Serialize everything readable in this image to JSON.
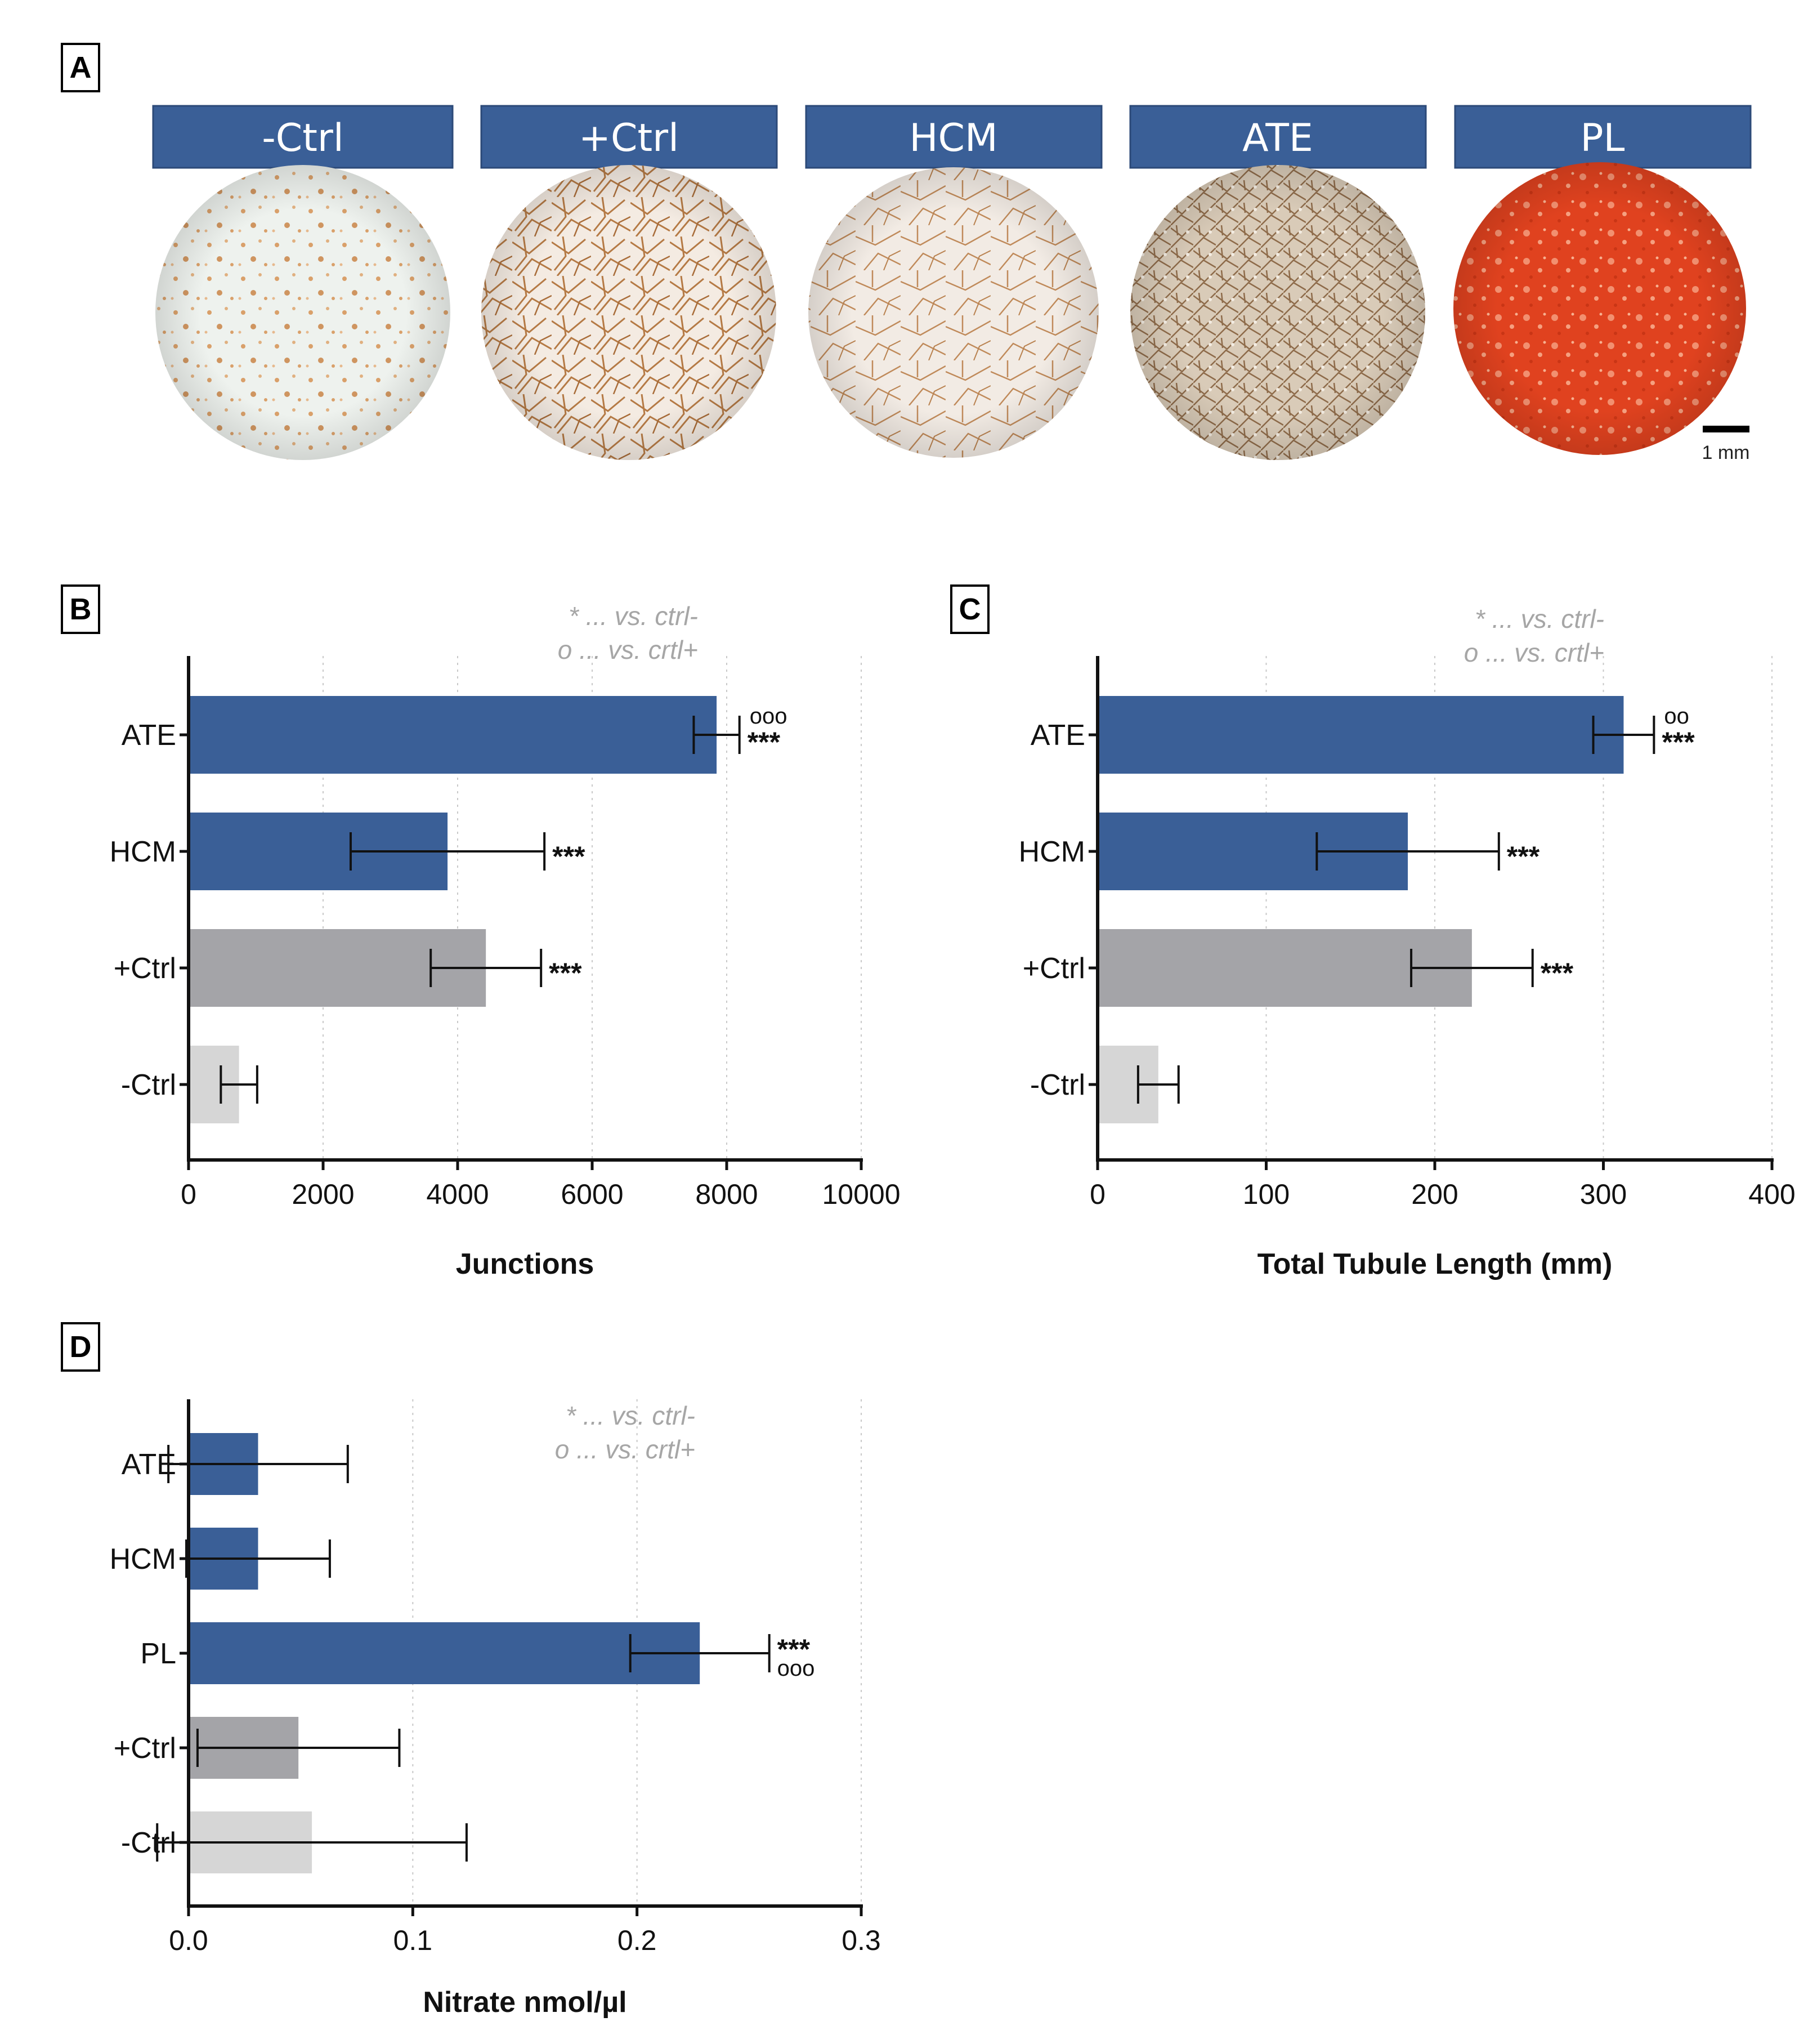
{
  "panel_a": {
    "letter": "A",
    "conditions": [
      {
        "label": "-Ctrl",
        "image": "sparse-orange-dots-well",
        "well_color": "#eef2ee",
        "accent": "#d9a06a"
      },
      {
        "label": "+Ctrl",
        "image": "dense-tubule-network-well",
        "well_color": "#f4ebe2",
        "accent": "#b57a45"
      },
      {
        "label": "HCM",
        "image": "tubule-network-well",
        "well_color": "#f2ebe4",
        "accent": "#c08a5a"
      },
      {
        "label": "ATE",
        "image": "dense-brown-texture-well",
        "well_color": "#d9cbb8",
        "accent": "#8e6b4a"
      },
      {
        "label": "PL",
        "image": "red-orange-well",
        "well_color": "#e0421f",
        "accent": "#f29070"
      }
    ],
    "header_color": "#3a5f97",
    "scale_bar_label": "1 mm"
  },
  "chart_data": [
    {
      "panel": "B",
      "type": "bar",
      "orientation": "horizontal",
      "categories": [
        "ATE",
        "HCM",
        "+Ctrl",
        "-Ctrl"
      ],
      "values": [
        7850,
        3850,
        4420,
        750
      ],
      "errors": [
        340,
        1440,
        820,
        270
      ],
      "colors": [
        "#3a5f97",
        "#3a5f97",
        "#a4a4a8",
        "#d6d6d6"
      ],
      "significance": [
        {
          "category": "ATE",
          "stars": "***",
          "circles": "ooo"
        },
        {
          "category": "HCM",
          "stars": "***",
          "circles": ""
        },
        {
          "category": "+Ctrl",
          "stars": "***",
          "circles": ""
        },
        {
          "category": "-Ctrl",
          "stars": "",
          "circles": ""
        }
      ],
      "xlabel": "Junctions",
      "xlim": [
        0,
        10000
      ],
      "xticks": [
        0,
        2000,
        4000,
        6000,
        8000,
        10000
      ],
      "xtick_labels": [
        "0",
        "2000",
        "4000",
        "6000",
        "8000",
        "10000"
      ],
      "legend": [
        "* ... vs. ctrl-",
        "o ... vs. crtl+"
      ],
      "grid": "vertical dotted"
    },
    {
      "panel": "C",
      "type": "bar",
      "orientation": "horizontal",
      "categories": [
        "ATE",
        "HCM",
        "+Ctrl",
        "-Ctrl"
      ],
      "values": [
        312,
        184,
        222,
        36
      ],
      "errors": [
        18,
        54,
        36,
        12
      ],
      "colors": [
        "#3a5f97",
        "#3a5f97",
        "#a4a4a8",
        "#d6d6d6"
      ],
      "significance": [
        {
          "category": "ATE",
          "stars": "***",
          "circles": "oo"
        },
        {
          "category": "HCM",
          "stars": "***",
          "circles": ""
        },
        {
          "category": "+Ctrl",
          "stars": "***",
          "circles": ""
        },
        {
          "category": "-Ctrl",
          "stars": "",
          "circles": ""
        }
      ],
      "xlabel": "Total Tubule Length  (mm)",
      "xlim": [
        0,
        400
      ],
      "xticks": [
        0,
        100,
        200,
        300,
        400
      ],
      "xtick_labels": [
        "0",
        "100",
        "200",
        "300",
        "400"
      ],
      "legend": [
        "* ... vs. ctrl-",
        "o ... vs. crtl+"
      ],
      "grid": "vertical dotted"
    },
    {
      "panel": "D",
      "type": "bar",
      "orientation": "horizontal",
      "categories": [
        "ATE",
        "HCM",
        "PL",
        "+Ctrl",
        "-Ctrl"
      ],
      "values": [
        0.031,
        0.031,
        0.228,
        0.049,
        0.055
      ],
      "errors": [
        0.04,
        0.032,
        0.031,
        0.045,
        0.069
      ],
      "colors": [
        "#3a5f97",
        "#3a5f97",
        "#3a5f97",
        "#a4a4a8",
        "#d6d6d6"
      ],
      "significance": [
        {
          "category": "ATE",
          "stars": "",
          "circles": ""
        },
        {
          "category": "HCM",
          "stars": "",
          "circles": ""
        },
        {
          "category": "PL",
          "stars": "***",
          "circles": "ooo"
        },
        {
          "category": "+Ctrl",
          "stars": "",
          "circles": ""
        },
        {
          "category": "-Ctrl",
          "stars": "",
          "circles": ""
        }
      ],
      "xlabel": "Nitrate nmol/µl",
      "xlim": [
        0,
        0.3
      ],
      "xticks": [
        0,
        0.1,
        0.2,
        0.3
      ],
      "xtick_labels": [
        "0.0",
        "0.1",
        "0.2",
        "0.3"
      ],
      "legend": [
        "* ... vs. ctrl-",
        "o ... vs. crtl+"
      ],
      "grid": "vertical dotted"
    }
  ]
}
